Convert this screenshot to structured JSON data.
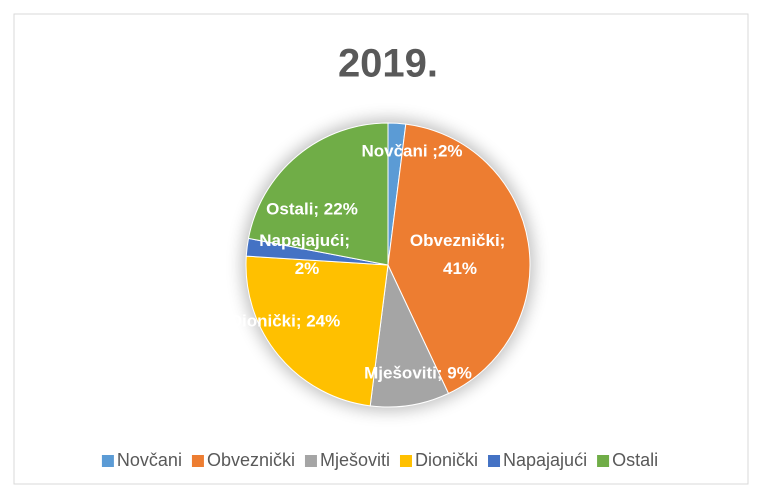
{
  "chart_data": {
    "type": "pie",
    "title": "2019.",
    "categories": [
      "Novčani",
      "Obveznički",
      "Mješoviti",
      "Dionički",
      "Napajajući",
      "Ostali"
    ],
    "values": [
      2,
      41,
      9,
      24,
      2,
      22
    ],
    "value_labels": [
      "Novčani ;2%",
      "Obveznički; 41%",
      "Mješoviti; 9%",
      "Dionički; 24%",
      "Napajajući; 2%",
      "Ostali; 22%"
    ],
    "colors": [
      "#5b9bd5",
      "#ed7d31",
      "#a5a5a5",
      "#ffc000",
      "#4472c4",
      "#70ad47"
    ],
    "legend": "bottom"
  }
}
